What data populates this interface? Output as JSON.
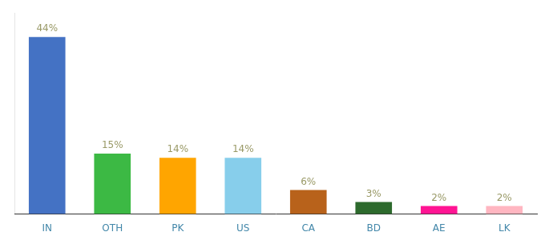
{
  "chart_data": {
    "type": "bar",
    "categories": [
      "IN",
      "OTH",
      "PK",
      "US",
      "CA",
      "BD",
      "AE",
      "LK"
    ],
    "values": [
      44,
      15,
      14,
      14,
      6,
      3,
      2,
      2
    ],
    "value_labels": [
      "44%",
      "15%",
      "14%",
      "14%",
      "6%",
      "3%",
      "2%",
      "2%"
    ],
    "data_labels": true,
    "colors": [
      "#4472C4",
      "#3CB944",
      "#FFA500",
      "#87CEEB",
      "#B8621B",
      "#2D6A2D",
      "#FF1493",
      "#FFB6C1"
    ],
    "ylim": [
      0,
      50
    ],
    "tick_labels": "x",
    "grid": false
  }
}
